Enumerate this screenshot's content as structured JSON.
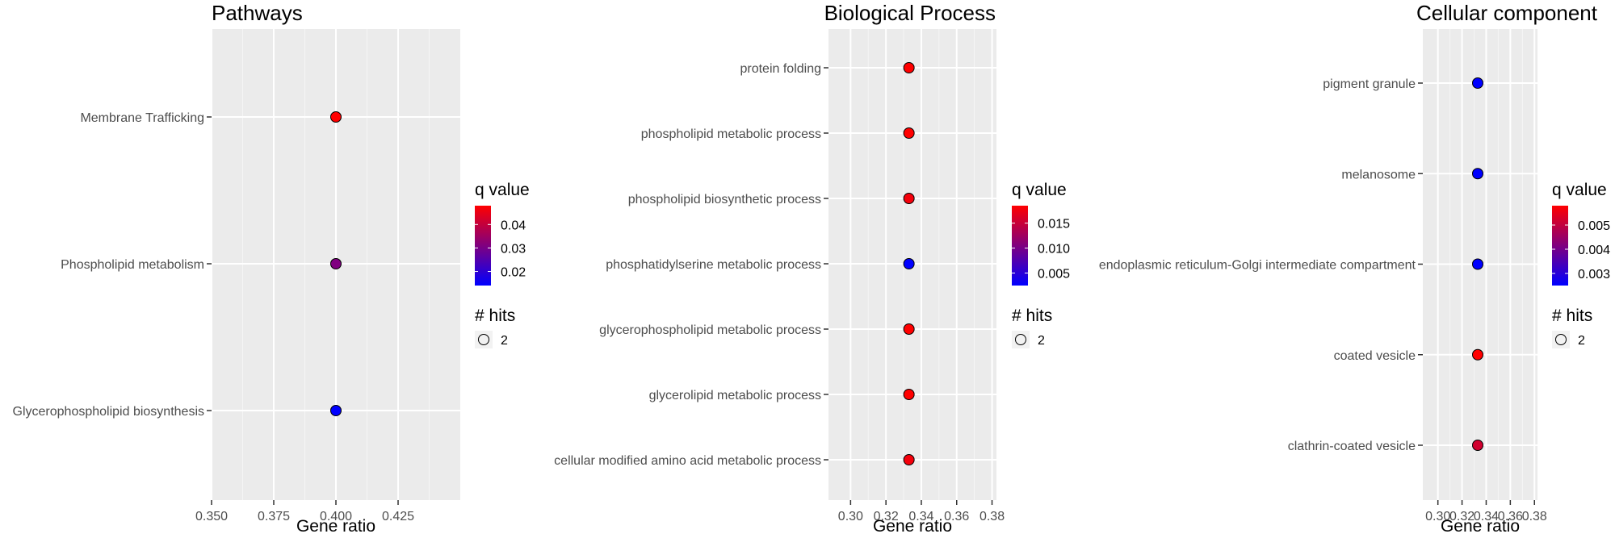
{
  "chart_data": [
    {
      "type": "scatter",
      "title": "Pathways",
      "xlabel": "Gene ratio",
      "ylabel": "",
      "xlim": [
        0.35,
        0.45
      ],
      "xticks": [
        "0.350",
        "0.375",
        "0.400",
        "0.425"
      ],
      "xtick_values": [
        0.35,
        0.375,
        0.4,
        0.425
      ],
      "categories": [
        "Membrane Trafficking",
        "Phospholipid metabolism",
        "Glycerophospholipid biosynthesis"
      ],
      "x": [
        0.4,
        0.4,
        0.4
      ],
      "q_values": [
        0.048,
        0.031,
        0.014
      ],
      "hits": [
        2,
        2,
        2
      ],
      "color_scale": {
        "title": "q value",
        "low": "#0000ff",
        "high": "#ff0000",
        "min": 0.014,
        "max": 0.048,
        "ticks": [
          "0.04",
          "0.03",
          "0.02"
        ],
        "tick_values": [
          0.04,
          0.03,
          0.02
        ]
      },
      "size_legend": {
        "title": "# hits",
        "labels": [
          "2"
        ]
      },
      "grid": true
    },
    {
      "type": "scatter",
      "title": "Biological Process",
      "xlabel": "Gene ratio",
      "ylabel": "",
      "xlim": [
        0.2875,
        0.3825
      ],
      "xticks": [
        "0.30",
        "0.32",
        "0.34",
        "0.36",
        "0.38"
      ],
      "xtick_values": [
        0.3,
        0.32,
        0.34,
        0.36,
        0.38
      ],
      "categories": [
        "protein folding",
        "phospholipid metabolic process",
        "phospholipid biosynthetic process",
        "phosphatidylserine metabolic process",
        "glycerophospholipid metabolic process",
        "glycerolipid metabolic process",
        "cellular modified amino acid metabolic process"
      ],
      "x": [
        0.333,
        0.333,
        0.333,
        0.333,
        0.333,
        0.333,
        0.333
      ],
      "q_values": [
        0.0185,
        0.0185,
        0.0178,
        0.0025,
        0.0185,
        0.0185,
        0.0178
      ],
      "hits": [
        2,
        2,
        2,
        2,
        2,
        2,
        2
      ],
      "color_scale": {
        "title": "q value",
        "low": "#0000ff",
        "high": "#ff0000",
        "min": 0.0025,
        "max": 0.0185,
        "ticks": [
          "0.015",
          "0.010",
          "0.005"
        ],
        "tick_values": [
          0.015,
          0.01,
          0.005
        ]
      },
      "size_legend": {
        "title": "# hits",
        "labels": [
          "2"
        ]
      },
      "grid": true
    },
    {
      "type": "scatter",
      "title": "Cellular component",
      "xlabel": "Gene ratio",
      "ylabel": "",
      "xlim": [
        0.2875,
        0.3825
      ],
      "xticks": [
        "0.30",
        "0.32",
        "0.34",
        "0.36",
        "0.38"
      ],
      "xtick_values": [
        0.3,
        0.32,
        0.34,
        0.36,
        0.38
      ],
      "categories": [
        "pigment granule",
        "melanosome",
        "endoplasmic reticulum-Golgi intermediate compartment",
        "coated vesicle",
        "clathrin-coated vesicle"
      ],
      "x": [
        0.333,
        0.333,
        0.333,
        0.333,
        0.333
      ],
      "q_values": [
        0.0025,
        0.0025,
        0.0025,
        0.0058,
        0.0052
      ],
      "hits": [
        2,
        2,
        2,
        2,
        2
      ],
      "color_scale": {
        "title": "q value",
        "low": "#0000ff",
        "high": "#ff0000",
        "min": 0.0025,
        "max": 0.0058,
        "ticks": [
          "0.005",
          "0.004",
          "0.003"
        ],
        "tick_values": [
          0.005,
          0.004,
          0.003
        ]
      },
      "size_legend": {
        "title": "# hits",
        "labels": [
          "2"
        ]
      },
      "grid": true
    }
  ]
}
